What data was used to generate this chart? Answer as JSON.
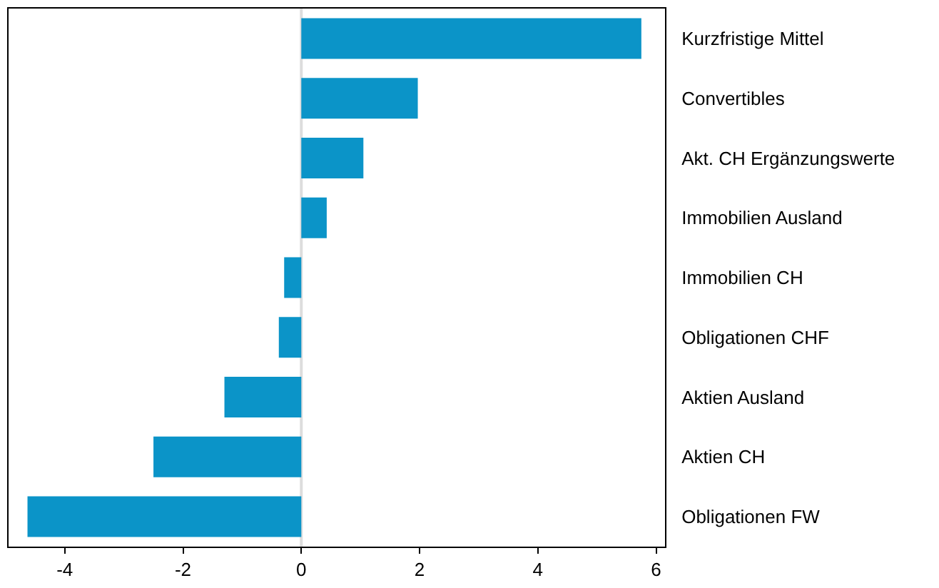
{
  "chart_data": {
    "type": "bar",
    "orientation": "horizontal",
    "categories": [
      "Kurzfristige Mittel",
      "Convertibles",
      "Akt. CH Ergänzungswerte",
      "Immobilien Ausland",
      "Immobilien CH",
      "Obligationen CHF",
      "Aktien Ausland",
      "Aktien CH",
      "Obligationen FW"
    ],
    "values": [
      5.75,
      1.97,
      1.05,
      0.43,
      -0.29,
      -0.38,
      -1.3,
      -2.5,
      -4.63
    ],
    "color": "#0b94c8",
    "xlim": [
      -4.95,
      6.15
    ],
    "xticks": [
      -4,
      -2,
      0,
      2,
      4,
      6
    ],
    "ref_lines": [
      {
        "axis": "x",
        "value": 0,
        "color": "#dddddd"
      }
    ],
    "grid": false
  }
}
